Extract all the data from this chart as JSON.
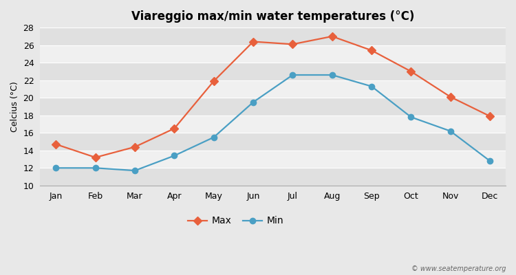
{
  "title": "Viareggio max/min water temperatures (°C)",
  "ylabel": "Celcius (°C)",
  "months": [
    "Jan",
    "Feb",
    "Mar",
    "Apr",
    "May",
    "Jun",
    "Jul",
    "Aug",
    "Sep",
    "Oct",
    "Nov",
    "Dec"
  ],
  "max_temps": [
    14.7,
    13.2,
    14.4,
    16.5,
    21.9,
    26.4,
    26.1,
    27.0,
    25.4,
    23.0,
    20.1,
    17.9
  ],
  "min_temps": [
    12.0,
    12.0,
    11.7,
    13.4,
    15.5,
    19.5,
    22.6,
    22.6,
    21.3,
    17.8,
    16.2,
    12.8
  ],
  "max_color": "#e8603c",
  "min_color": "#4a9fc4",
  "fig_bg_color": "#e8e8e8",
  "plot_bg_color": "#f0f0f0",
  "stripe_color_dark": "#e0e0e0",
  "stripe_color_light": "#f0f0f0",
  "grid_color": "#d8d8d8",
  "ylim": [
    10,
    28
  ],
  "yticks": [
    10,
    12,
    14,
    16,
    18,
    20,
    22,
    24,
    26,
    28
  ],
  "watermark": "© www.seatemperature.org",
  "legend_max": "Max",
  "legend_min": "Min",
  "title_fontsize": 12,
  "label_fontsize": 9,
  "tick_fontsize": 9
}
